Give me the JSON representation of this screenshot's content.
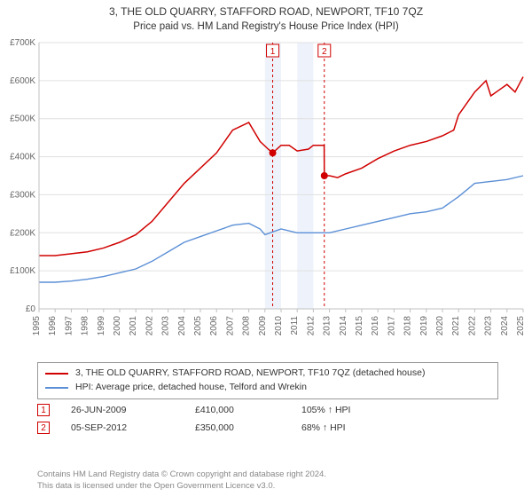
{
  "header": {
    "title": "3, THE OLD QUARRY, STAFFORD ROAD, NEWPORT, TF10 7QZ",
    "subtitle": "Price paid vs. HM Land Registry's House Price Index (HPI)"
  },
  "chart": {
    "type": "line",
    "background_color": "#ffffff",
    "grid_color": "#e0e0e0",
    "axis_color": "#c0c0c0",
    "title_fontsize": 12,
    "label_fontsize": 10,
    "x": {
      "min": 1995,
      "max": 2025,
      "ticks": [
        1995,
        1996,
        1997,
        1998,
        1999,
        2000,
        2001,
        2002,
        2003,
        2004,
        2005,
        2006,
        2007,
        2008,
        2009,
        2010,
        2011,
        2012,
        2013,
        2014,
        2015,
        2016,
        2017,
        2018,
        2019,
        2020,
        2021,
        2022,
        2023,
        2024,
        2025
      ],
      "tick_rotate": -90
    },
    "y": {
      "min": 0,
      "max": 700000,
      "prefix": "£",
      "suffix": "K",
      "divisor": 1000,
      "ticks": [
        0,
        100000,
        200000,
        300000,
        400000,
        500000,
        600000,
        700000
      ]
    },
    "bands": [
      {
        "from": 2009.0,
        "to": 2010.0,
        "color": "#eef3fb"
      },
      {
        "from": 2011.0,
        "to": 2012.0,
        "color": "#eef3fb"
      }
    ],
    "markers": [
      {
        "x": 2009.48,
        "label": "1",
        "line_color": "#d00000",
        "dash": "3,3"
      },
      {
        "x": 2012.68,
        "label": "2",
        "line_color": "#d00000",
        "dash": "3,3"
      }
    ],
    "series": [
      {
        "name": "property",
        "color": "#d00000",
        "width": 1.5,
        "points": [
          [
            1995,
            140000
          ],
          [
            1996,
            140000
          ],
          [
            1997,
            145000
          ],
          [
            1998,
            150000
          ],
          [
            1999,
            160000
          ],
          [
            2000,
            175000
          ],
          [
            2001,
            195000
          ],
          [
            2002,
            230000
          ],
          [
            2003,
            280000
          ],
          [
            2004,
            330000
          ],
          [
            2005,
            370000
          ],
          [
            2006,
            410000
          ],
          [
            2007,
            470000
          ],
          [
            2008,
            490000
          ],
          [
            2008.7,
            440000
          ],
          [
            2009.2,
            420000
          ],
          [
            2009.48,
            410000
          ],
          [
            2010,
            430000
          ],
          [
            2010.5,
            430000
          ],
          [
            2011,
            415000
          ],
          [
            2011.7,
            420000
          ],
          [
            2012,
            430000
          ],
          [
            2012.67,
            430000
          ],
          [
            2012.68,
            350000
          ],
          [
            2013,
            350000
          ],
          [
            2013.5,
            345000
          ],
          [
            2014,
            355000
          ],
          [
            2015,
            370000
          ],
          [
            2016,
            395000
          ],
          [
            2017,
            415000
          ],
          [
            2018,
            430000
          ],
          [
            2019,
            440000
          ],
          [
            2020,
            455000
          ],
          [
            2020.7,
            470000
          ],
          [
            2021,
            510000
          ],
          [
            2022,
            570000
          ],
          [
            2022.7,
            600000
          ],
          [
            2023,
            560000
          ],
          [
            2023.5,
            575000
          ],
          [
            2024,
            590000
          ],
          [
            2024.5,
            570000
          ],
          [
            2025,
            610000
          ]
        ],
        "dots": [
          {
            "x": 2009.48,
            "y": 410000,
            "fill": "#d00000"
          },
          {
            "x": 2012.68,
            "y": 350000,
            "fill": "#d00000"
          }
        ]
      },
      {
        "name": "hpi",
        "color": "#5b8fd6",
        "width": 1.4,
        "points": [
          [
            1995,
            70000
          ],
          [
            1996,
            70000
          ],
          [
            1997,
            73000
          ],
          [
            1998,
            78000
          ],
          [
            1999,
            85000
          ],
          [
            2000,
            95000
          ],
          [
            2001,
            105000
          ],
          [
            2002,
            125000
          ],
          [
            2003,
            150000
          ],
          [
            2004,
            175000
          ],
          [
            2005,
            190000
          ],
          [
            2006,
            205000
          ],
          [
            2007,
            220000
          ],
          [
            2008,
            225000
          ],
          [
            2008.7,
            210000
          ],
          [
            2009,
            195000
          ],
          [
            2010,
            210000
          ],
          [
            2011,
            200000
          ],
          [
            2012,
            200000
          ],
          [
            2013,
            200000
          ],
          [
            2014,
            210000
          ],
          [
            2015,
            220000
          ],
          [
            2016,
            230000
          ],
          [
            2017,
            240000
          ],
          [
            2018,
            250000
          ],
          [
            2019,
            255000
          ],
          [
            2020,
            265000
          ],
          [
            2021,
            295000
          ],
          [
            2022,
            330000
          ],
          [
            2023,
            335000
          ],
          [
            2024,
            340000
          ],
          [
            2025,
            350000
          ]
        ]
      }
    ]
  },
  "legend": {
    "items": [
      {
        "color": "#d00000",
        "label": "3, THE OLD QUARRY, STAFFORD ROAD, NEWPORT, TF10 7QZ (detached house)"
      },
      {
        "color": "#5b8fd6",
        "label": "HPI: Average price, detached house, Telford and Wrekin"
      }
    ]
  },
  "events": [
    {
      "num": "1",
      "date": "26-JUN-2009",
      "price": "£410,000",
      "hpi": "105% ↑ HPI"
    },
    {
      "num": "2",
      "date": "05-SEP-2012",
      "price": "£350,000",
      "hpi": "68% ↑ HPI"
    }
  ],
  "footer": {
    "line1": "Contains HM Land Registry data © Crown copyright and database right 2024.",
    "line2": "This data is licensed under the Open Government Licence v3.0."
  }
}
